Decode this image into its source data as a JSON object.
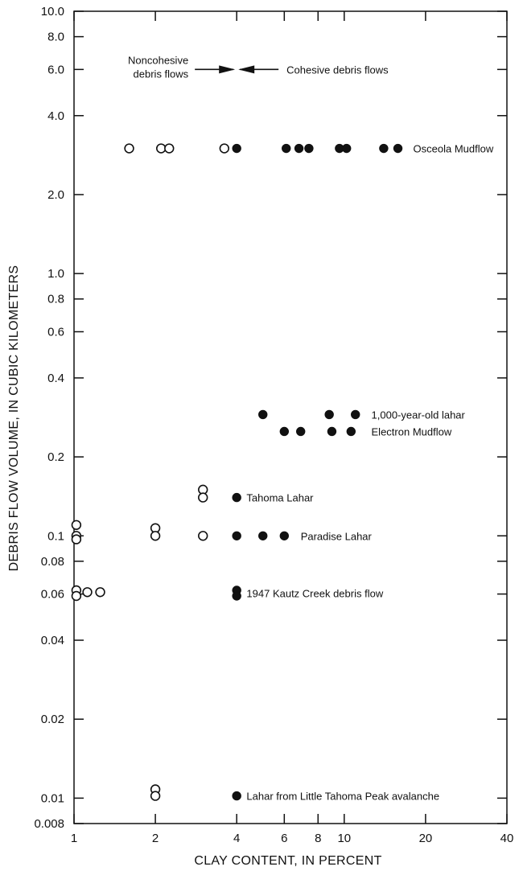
{
  "chart_data": {
    "type": "scatter",
    "xlabel": "CLAY CONTENT, IN PERCENT",
    "ylabel": "DEBRIS FLOW VOLUME, IN CUBIC KILOMETERS",
    "xscale": "log",
    "yscale": "log",
    "xlim": [
      1,
      40
    ],
    "ylim": [
      0.008,
      10.0
    ],
    "grid": false,
    "xticks": [
      {
        "v": 1,
        "label": "1"
      },
      {
        "v": 2,
        "label": "2"
      },
      {
        "v": 4,
        "label": "4"
      },
      {
        "v": 6,
        "label": "6"
      },
      {
        "v": 8,
        "label": "8"
      },
      {
        "v": 10,
        "label": "10"
      },
      {
        "v": 20,
        "label": "20"
      },
      {
        "v": 40,
        "label": "40"
      }
    ],
    "yticks": [
      {
        "v": 10.0,
        "label": "10.0"
      },
      {
        "v": 8.0,
        "label": "8.0"
      },
      {
        "v": 6.0,
        "label": "6.0"
      },
      {
        "v": 4.0,
        "label": "4.0"
      },
      {
        "v": 2.0,
        "label": "2.0"
      },
      {
        "v": 1.0,
        "label": "1.0"
      },
      {
        "v": 0.8,
        "label": "0.8"
      },
      {
        "v": 0.6,
        "label": "0.6"
      },
      {
        "v": 0.4,
        "label": "0.4"
      },
      {
        "v": 0.2,
        "label": "0.2"
      },
      {
        "v": 0.1,
        "label": "0.1"
      },
      {
        "v": 0.08,
        "label": "0.08"
      },
      {
        "v": 0.06,
        "label": "0.06"
      },
      {
        "v": 0.04,
        "label": "0.04"
      },
      {
        "v": 0.02,
        "label": "0.02"
      },
      {
        "v": 0.01,
        "label": "0.01"
      },
      {
        "v": 0.008,
        "label": "0.008"
      }
    ],
    "series": [
      {
        "style": "open",
        "points": [
          {
            "x": 1.6,
            "y": 3.0
          },
          {
            "x": 2.1,
            "y": 3.0
          },
          {
            "x": 2.25,
            "y": 3.0
          },
          {
            "x": 3.6,
            "y": 3.0
          },
          {
            "x": 3.0,
            "y": 0.15
          },
          {
            "x": 3.0,
            "y": 0.14
          },
          {
            "x": 1.02,
            "y": 0.11
          },
          {
            "x": 1.02,
            "y": 0.1
          },
          {
            "x": 1.02,
            "y": 0.097
          },
          {
            "x": 2.0,
            "y": 0.107
          },
          {
            "x": 2.0,
            "y": 0.1
          },
          {
            "x": 3.0,
            "y": 0.1
          },
          {
            "x": 1.02,
            "y": 0.062
          },
          {
            "x": 1.02,
            "y": 0.059
          },
          {
            "x": 1.12,
            "y": 0.061
          },
          {
            "x": 1.25,
            "y": 0.061
          },
          {
            "x": 2.0,
            "y": 0.0108
          },
          {
            "x": 2.0,
            "y": 0.0102
          }
        ]
      },
      {
        "style": "filled",
        "points": [
          {
            "x": 4.0,
            "y": 3.0
          },
          {
            "x": 6.1,
            "y": 3.0
          },
          {
            "x": 6.8,
            "y": 3.0
          },
          {
            "x": 7.4,
            "y": 3.0
          },
          {
            "x": 9.6,
            "y": 3.0
          },
          {
            "x": 10.2,
            "y": 3.0
          },
          {
            "x": 14.0,
            "y": 3.0
          },
          {
            "x": 15.8,
            "y": 3.0
          },
          {
            "x": 5.0,
            "y": 0.29
          },
          {
            "x": 8.8,
            "y": 0.29
          },
          {
            "x": 11.0,
            "y": 0.29
          },
          {
            "x": 6.0,
            "y": 0.25
          },
          {
            "x": 6.9,
            "y": 0.25
          },
          {
            "x": 9.0,
            "y": 0.25
          },
          {
            "x": 10.6,
            "y": 0.25
          },
          {
            "x": 4.0,
            "y": 0.14
          },
          {
            "x": 4.0,
            "y": 0.1
          },
          {
            "x": 5.0,
            "y": 0.1
          },
          {
            "x": 6.0,
            "y": 0.1
          },
          {
            "x": 4.0,
            "y": 0.062
          },
          {
            "x": 4.0,
            "y": 0.059
          },
          {
            "x": 4.0,
            "y": 0.0102
          }
        ]
      }
    ],
    "annotations": [
      {
        "text": "Osceola Mudflow",
        "x": 18.0,
        "y": 3.0
      },
      {
        "text": "1,000-year-old lahar",
        "x": 12.6,
        "y": 0.29
      },
      {
        "text": "Electron Mudflow",
        "x": 12.6,
        "y": 0.25
      },
      {
        "text": "Tahoma Lahar",
        "x": 4.35,
        "y": 0.14
      },
      {
        "text": "Paradise Lahar",
        "x": 6.9,
        "y": 0.1
      },
      {
        "text": "1947 Kautz Creek debris flow",
        "x": 4.35,
        "y": 0.0605
      },
      {
        "text": "Lahar from Little Tahoma Peak avalanche",
        "x": 4.35,
        "y": 0.0102
      }
    ],
    "divider": {
      "left_label_line1": "Noncohesive",
      "left_label_line2": "debris flows",
      "right_label": "Cohesive debris flows",
      "x": 4.0,
      "y": 6.0
    }
  }
}
